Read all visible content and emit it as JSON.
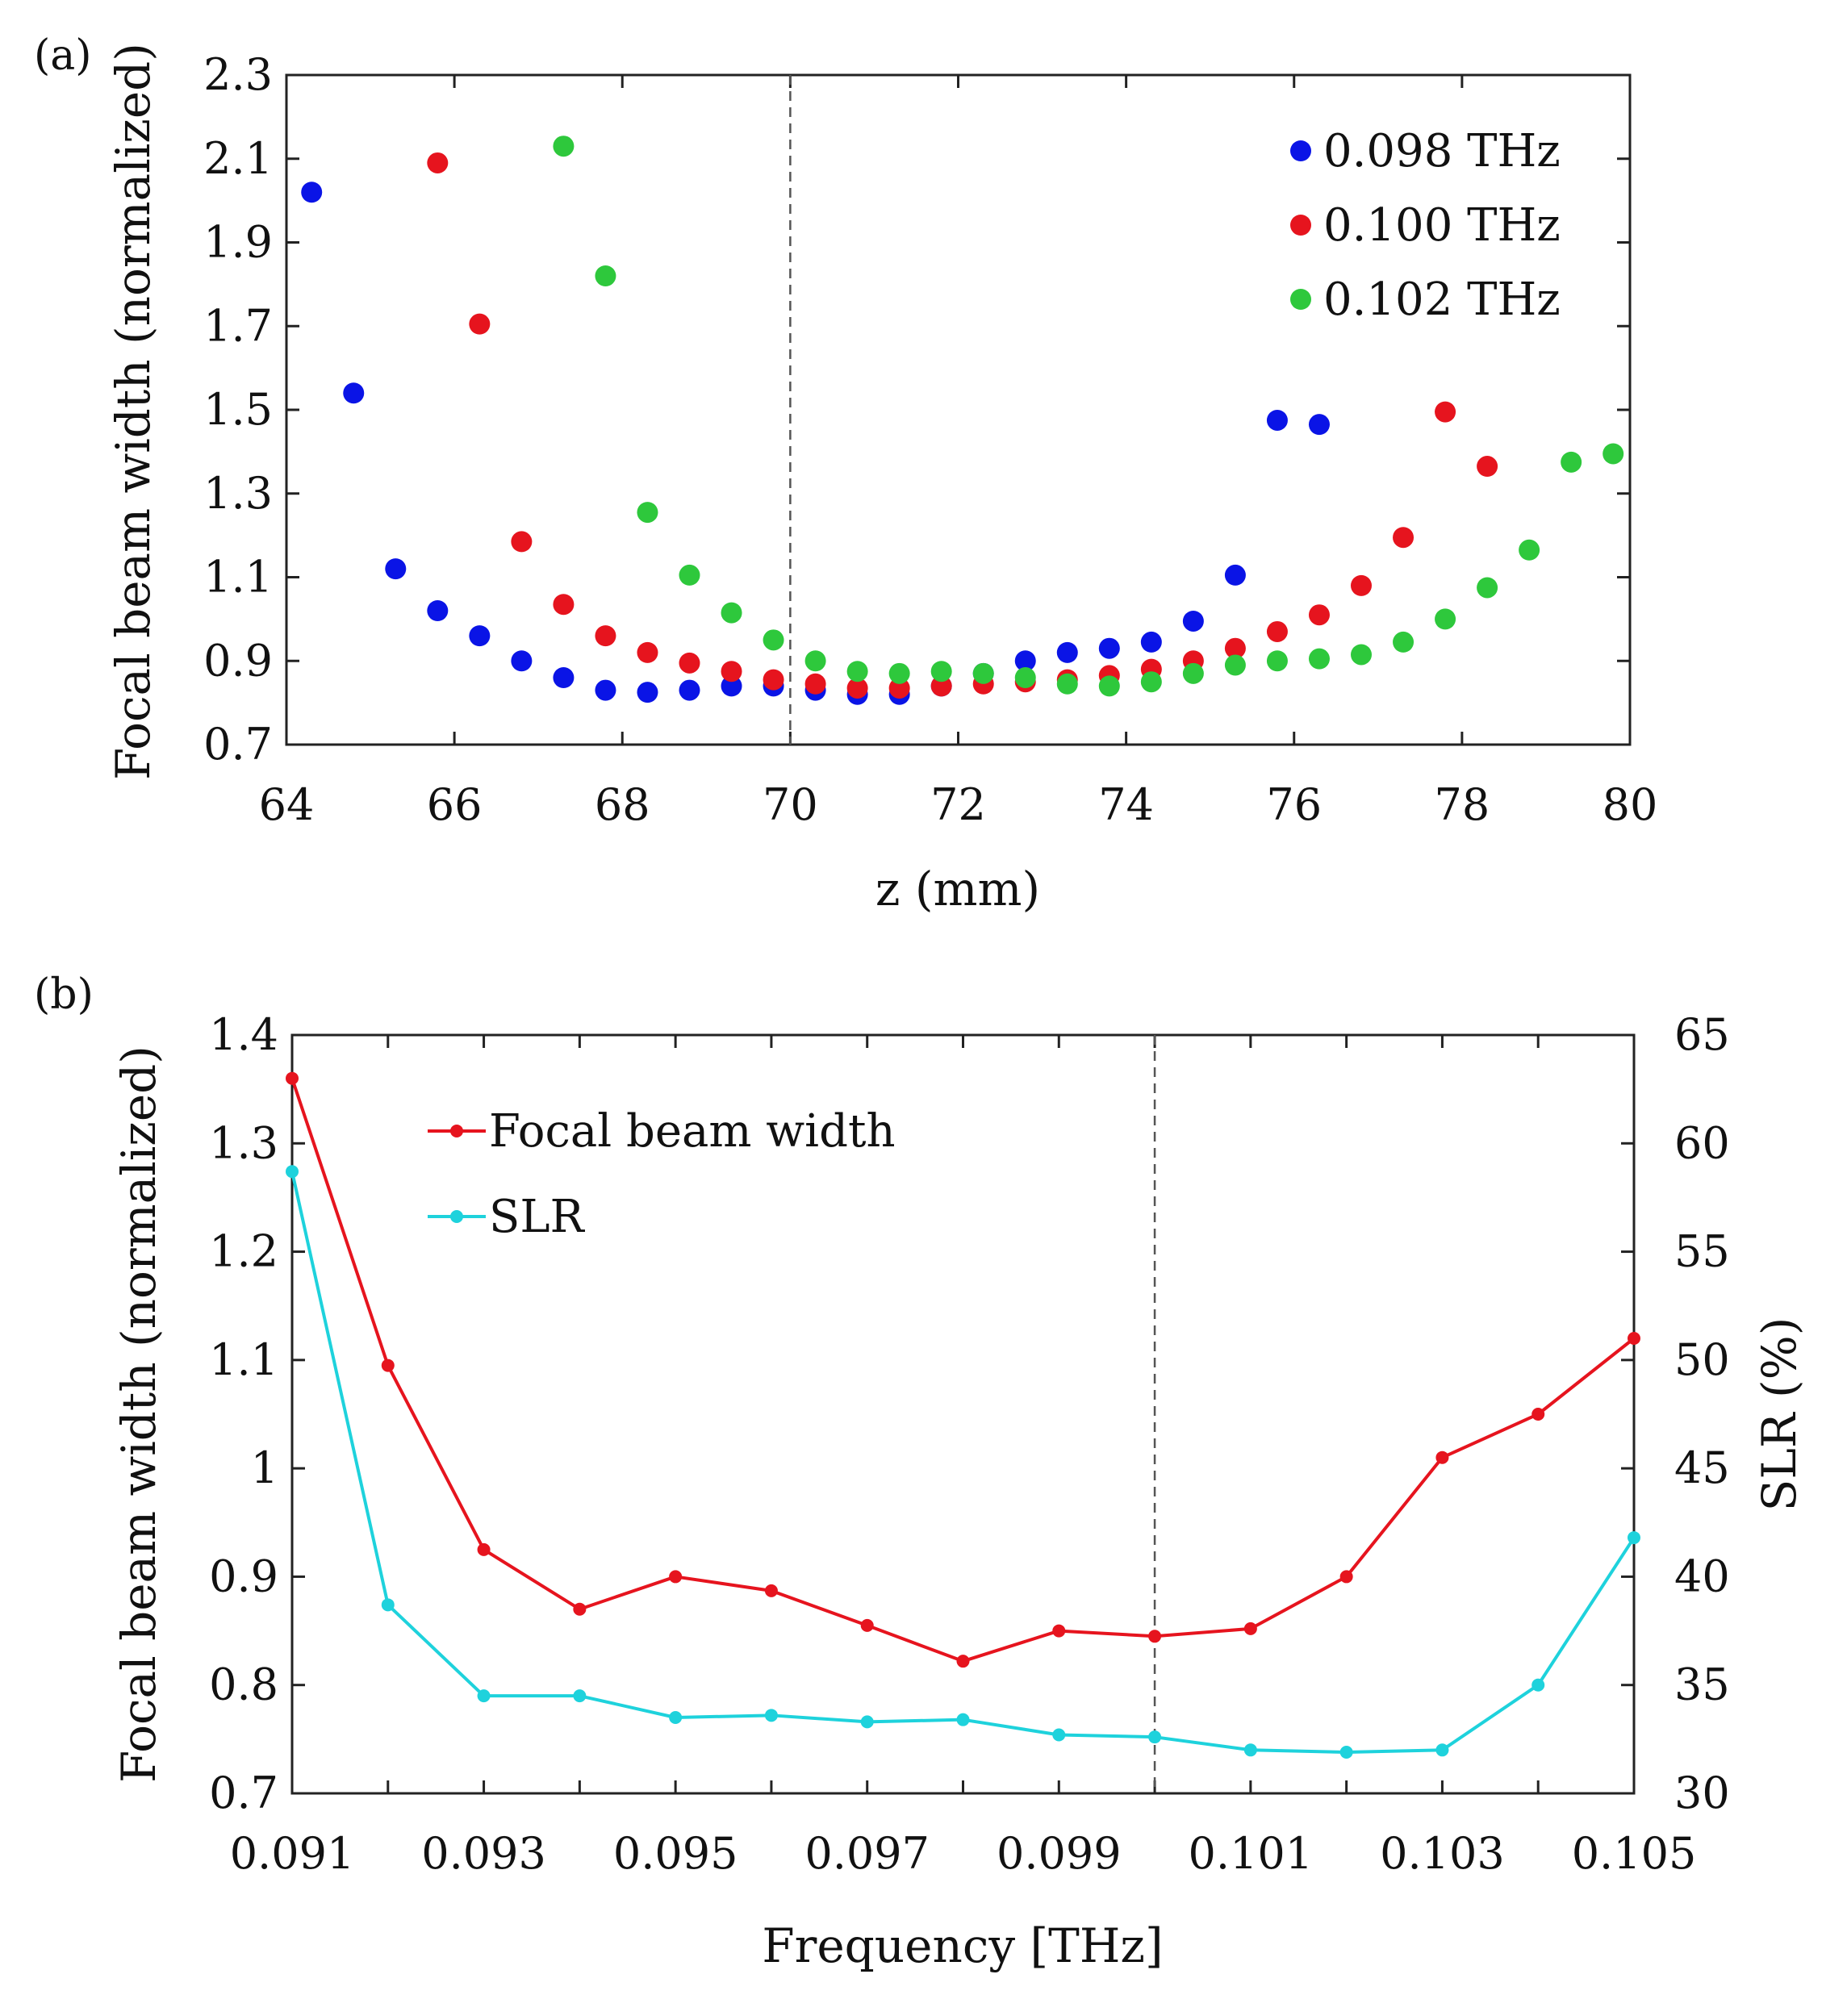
{
  "chart_data": [
    {
      "panel_label": "(a)",
      "type": "scatter",
      "xlabel": "z (mm)",
      "ylabel": "Focal beam width (normalized)",
      "xlim": [
        64,
        80
      ],
      "ylim": [
        0.7,
        2.3
      ],
      "xticks": [
        "64",
        "66",
        "68",
        "70",
        "72",
        "74",
        "76",
        "78",
        "80"
      ],
      "yticks": [
        "0.7",
        "0.9",
        "1.1",
        "1.3",
        "1.5",
        "1.7",
        "1.9",
        "2.1",
        "2.3"
      ],
      "reference_line_x": 70,
      "legend_position": "top-right",
      "series": [
        {
          "name": "0.098 THz",
          "color": "#0a14e6",
          "x": [
            64.3,
            64.8,
            65.3,
            65.8,
            66.3,
            66.8,
            67.3,
            67.8,
            68.3,
            68.8,
            69.3,
            69.8,
            70.3,
            70.8,
            71.3,
            71.8,
            72.3,
            72.8,
            73.3,
            73.8,
            74.3,
            74.8,
            75.3,
            75.8,
            76.3
          ],
          "y": [
            2.02,
            1.54,
            1.12,
            1.02,
            0.96,
            0.9,
            0.86,
            0.83,
            0.825,
            0.83,
            0.84,
            0.84,
            0.83,
            0.82,
            0.82,
            0.84,
            0.87,
            0.9,
            0.92,
            0.93,
            0.945,
            0.995,
            1.105,
            1.475,
            1.465
          ]
        },
        {
          "name": "0.100 THz",
          "color": "#e6141e",
          "x": [
            65.8,
            66.3,
            66.8,
            67.3,
            67.8,
            68.3,
            68.8,
            69.3,
            69.8,
            70.3,
            70.8,
            71.3,
            71.8,
            72.3,
            72.8,
            73.3,
            73.8,
            74.3,
            74.8,
            75.3,
            75.8,
            76.3,
            76.8,
            77.3,
            77.8,
            78.3
          ],
          "y": [
            2.09,
            1.705,
            1.185,
            1.035,
            0.96,
            0.92,
            0.895,
            0.875,
            0.855,
            0.845,
            0.835,
            0.835,
            0.84,
            0.845,
            0.85,
            0.855,
            0.865,
            0.88,
            0.9,
            0.93,
            0.97,
            1.01,
            1.08,
            1.195,
            1.495,
            1.365
          ]
        },
        {
          "name": "0.102 THz",
          "color": "#2ec83c",
          "x": [
            67.3,
            67.8,
            68.3,
            68.8,
            69.3,
            69.8,
            70.3,
            70.8,
            71.3,
            71.8,
            72.3,
            72.8,
            73.3,
            73.8,
            74.3,
            74.8,
            75.3,
            75.8,
            76.3,
            76.8,
            77.3,
            77.8,
            78.3,
            78.8,
            79.3,
            79.8
          ],
          "y": [
            2.13,
            1.82,
            1.255,
            1.105,
            1.015,
            0.95,
            0.9,
            0.875,
            0.87,
            0.875,
            0.87,
            0.86,
            0.845,
            0.84,
            0.85,
            0.87,
            0.89,
            0.9,
            0.905,
            0.915,
            0.945,
            1.0,
            1.075,
            1.165,
            1.375,
            1.395
          ]
        }
      ]
    },
    {
      "panel_label": "(b)",
      "type": "line",
      "xlabel": "Frequency [THz]",
      "ylabel": "Focal beam width (normalized)",
      "ylabel_right": "SLR (%)",
      "xlim": [
        0.091,
        0.105
      ],
      "ylim": [
        0.7,
        1.4
      ],
      "ylim_right": [
        30,
        65
      ],
      "xticks": [
        "0.091",
        "0.093",
        "0.095",
        "0.097",
        "0.099",
        "0.101",
        "0.103",
        "0.105"
      ],
      "yticks": [
        "0.7",
        "0.8",
        "0.9",
        "1",
        "1.1",
        "1.2",
        "1.3",
        "1.4"
      ],
      "yticks_right": [
        "30",
        "35",
        "40",
        "45",
        "50",
        "55",
        "60",
        "65"
      ],
      "reference_line_x": 0.1,
      "legend_position": "top-left",
      "x": [
        0.091,
        0.092,
        0.093,
        0.094,
        0.095,
        0.096,
        0.097,
        0.098,
        0.099,
        0.1,
        0.101,
        0.102,
        0.103,
        0.104,
        0.105
      ],
      "series": [
        {
          "name": "Focal beam width",
          "color": "#e6141e",
          "axis": "left",
          "values": [
            1.36,
            1.095,
            0.925,
            0.87,
            0.9,
            0.887,
            0.855,
            0.822,
            0.85,
            0.845,
            0.852,
            0.9,
            1.01,
            1.05,
            1.12
          ]
        },
        {
          "name": "SLR",
          "color": "#1ed2dc",
          "axis": "right",
          "values": [
            58.7,
            38.7,
            34.5,
            34.5,
            33.5,
            33.6,
            33.3,
            33.4,
            32.7,
            32.6,
            32.0,
            31.9,
            32.0,
            35.0,
            41.8
          ]
        }
      ]
    }
  ]
}
